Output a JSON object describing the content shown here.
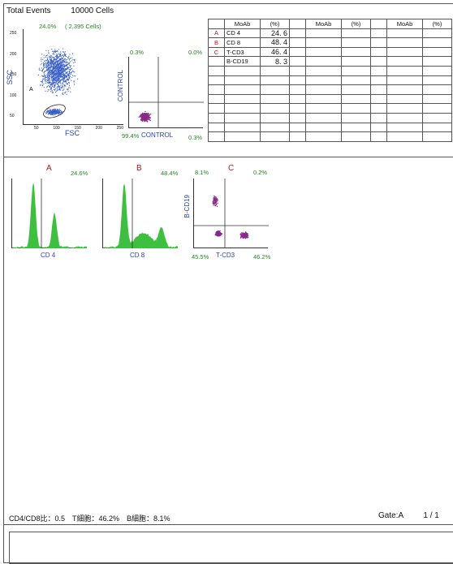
{
  "header": {
    "label": "Total Events",
    "value": "10000 Cells"
  },
  "scatter": {
    "gate_pct": "24.0%",
    "gate_cells": "( 2,395 Cells)",
    "gate_label": "A",
    "ylabel": "SSC",
    "xlabel": "FSC",
    "yticks": [
      "250",
      "200",
      "150",
      "100",
      "50"
    ],
    "xticks": [
      "50",
      "100",
      "150",
      "200",
      "250"
    ]
  },
  "control": {
    "ylabel": "CONTROL",
    "xlabel": "CONTROL",
    "q_ul": "0.3%",
    "q_ur": "0.0%",
    "q_ll": "99.4%",
    "q_lr": "0.3%"
  },
  "table": {
    "headers": [
      "",
      "MoAb",
      "(%)",
      "",
      "MoAb",
      "(%)",
      "",
      "MoAb",
      "(%)"
    ],
    "rows": [
      {
        "tag": "A",
        "moab": "CD 4",
        "pct": "24. 6"
      },
      {
        "tag": "B",
        "moab": "CD 8",
        "pct": "48. 4"
      },
      {
        "tag": "C",
        "moab": "T-CD3",
        "pct": "46. 4"
      },
      {
        "tag": "",
        "moab": "B-CD19",
        "pct": "8. 3"
      }
    ]
  },
  "histA": {
    "title": "A",
    "pct": "24.6%",
    "xlabel": "CD 4"
  },
  "histB": {
    "title": "B",
    "pct": "48.4%",
    "xlabel": "CD 8"
  },
  "quadC": {
    "title": "C",
    "ylabel": "B-CD19",
    "xlabel": "T-CD3",
    "q_ul": "8.1%",
    "q_ur": "0.2%",
    "q_ll": "45.5%",
    "q_lr": "46.2%"
  },
  "footer": {
    "summary": "CD4/CD8比：0.5　T細胞：46.2%　B細胞：8.1%",
    "gate": "Gate:A",
    "page": "1 / 1"
  },
  "colors": {
    "green": "#1f8a1f",
    "red": "#b81414",
    "blue": "#2a43b8",
    "scatter_dots": "#3a5fc8",
    "purple": "#8a2a8a",
    "hist_fill": "#3fbf3f"
  }
}
